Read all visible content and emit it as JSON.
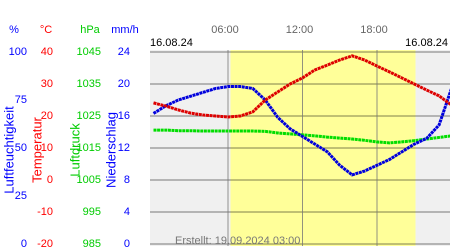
{
  "chart_data": {
    "type": "line",
    "date_left": "16.08.24",
    "date_right": "16.08.24",
    "footer": "Erstellt: 19.09.2024 03:00",
    "xlim": [
      0,
      24
    ],
    "xticks": [
      {
        "value": 6,
        "label": "06:00"
      },
      {
        "value": 12,
        "label": "12:00"
      },
      {
        "value": 18,
        "label": "18:00"
      }
    ],
    "daylight": [
      6.2,
      21.1
    ],
    "grid": true,
    "yunit": "%",
    "ylabel": "Luftfeuchtigkeit",
    "ylim": [
      0,
      100
    ],
    "yticks": [
      100,
      75,
      50,
      25,
      0
    ],
    "y2unit": "°C",
    "y2label": "Temperatur",
    "y2lim": [
      -20,
      40
    ],
    "y2ticks": [
      40,
      30,
      20,
      10,
      0,
      -10,
      -20
    ],
    "y3unit": "hPa",
    "y3label": "Luftdruck",
    "y3lim": [
      985,
      1045
    ],
    "y3ticks": [
      1045,
      1035,
      1025,
      1015,
      1005,
      995,
      985
    ],
    "y4unit": "mm/h",
    "y4label": "Niederschlag",
    "y4lim": [
      0,
      24
    ],
    "y4ticks": [
      24,
      20,
      16,
      12,
      8,
      4,
      0
    ],
    "x": [
      0,
      1,
      2,
      3,
      4,
      5,
      6,
      7,
      8,
      9,
      10,
      11,
      12,
      13,
      14,
      15,
      16,
      17,
      18,
      19,
      20,
      21,
      22,
      23,
      24
    ],
    "series": [
      {
        "axis": "y3",
        "color": "#00dd00",
        "values": [
          1020.6,
          1020.6,
          1020.4,
          1020.4,
          1020.3,
          1020.3,
          1020.3,
          1020.3,
          1020.3,
          1020.2,
          1019.7,
          1019.4,
          1019.1,
          1018.8,
          1018.4,
          1018.1,
          1017.8,
          1017.4,
          1016.9,
          1016.6,
          1016.9,
          1017.3,
          1017.8,
          1018.3,
          1018.8
        ]
      },
      {
        "axis": "y",
        "color": "#0000dd",
        "values": [
          68,
          72,
          75,
          77,
          79,
          81,
          82,
          82,
          81,
          75,
          66,
          60,
          56,
          52,
          48,
          41,
          36,
          38,
          41,
          44,
          48,
          52,
          55,
          62,
          81
        ]
      },
      {
        "axis": "y2",
        "color": "#dd0000",
        "values": [
          24.1,
          23.1,
          21.9,
          20.9,
          20.3,
          20.0,
          19.7,
          20.0,
          21.3,
          25.0,
          27.5,
          30.0,
          31.9,
          34.4,
          35.9,
          37.5,
          38.8,
          37.5,
          35.6,
          33.8,
          31.9,
          30.0,
          28.1,
          26.3,
          23.4
        ]
      }
    ]
  }
}
